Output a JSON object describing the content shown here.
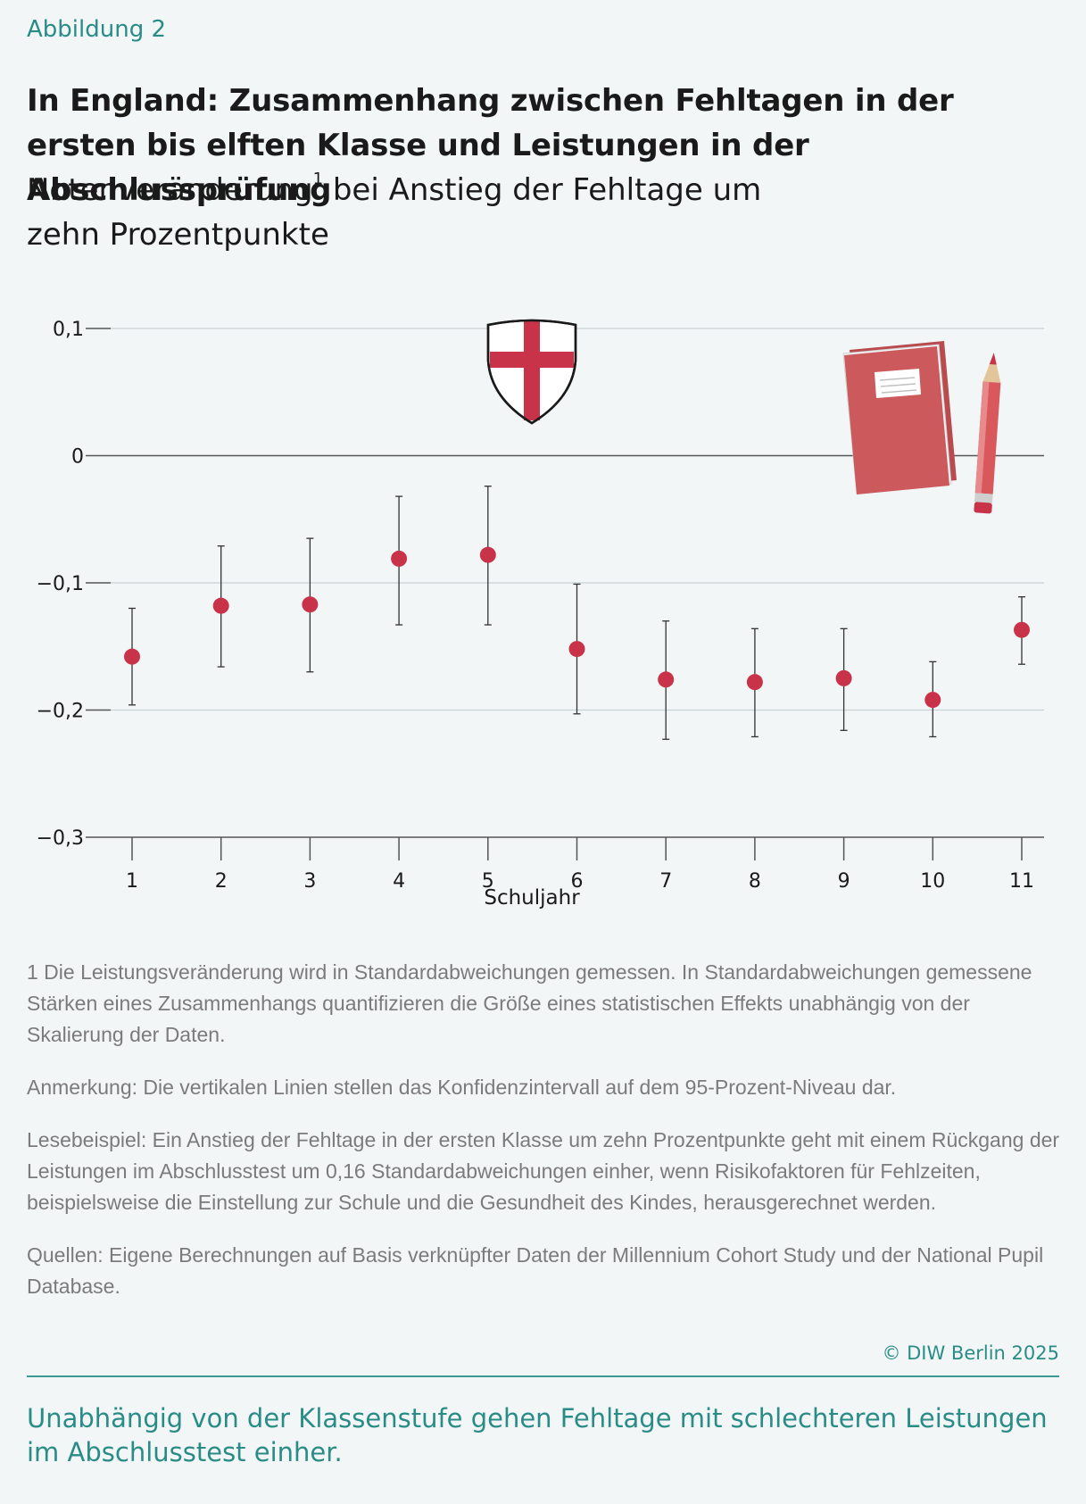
{
  "header": {
    "figure_label": "Abbildung 2",
    "title": "In England: Zusammenhang zwischen Fehltagen in der ersten bis elften Klasse und Leistungen in der Abschlussprüfung",
    "subtitle_pre": "Notenveränderung",
    "subtitle_sup": "1",
    "subtitle_post": " bei Anstieg der Fehltage um zehn Prozentpunkte"
  },
  "chart_data": {
    "type": "scatter",
    "x": [
      1,
      2,
      3,
      4,
      5,
      6,
      7,
      8,
      9,
      10,
      11
    ],
    "y": [
      -0.158,
      -0.118,
      -0.117,
      -0.081,
      -0.078,
      -0.152,
      -0.176,
      -0.178,
      -0.175,
      -0.192,
      -0.137
    ],
    "ci_low": [
      -0.196,
      -0.166,
      -0.17,
      -0.133,
      -0.133,
      -0.203,
      -0.223,
      -0.221,
      -0.216,
      -0.221,
      -0.164
    ],
    "ci_high": [
      -0.12,
      -0.071,
      -0.065,
      -0.032,
      -0.024,
      -0.101,
      -0.13,
      -0.136,
      -0.136,
      -0.162,
      -0.111
    ],
    "xlabel": "Schuljahr",
    "ylabel": "",
    "ylim": [
      -0.3,
      0.1
    ],
    "yticks": [
      0.1,
      0,
      -0.1,
      -0.2,
      -0.3
    ],
    "ytick_labels": [
      "0,1",
      "0",
      "−0,1",
      "−0,2",
      "−0,3"
    ],
    "xtick_labels": [
      "1",
      "2",
      "3",
      "4",
      "5",
      "6",
      "7",
      "8",
      "9",
      "10",
      "11"
    ],
    "grid": true,
    "point_color": "#c9334a",
    "icons": [
      "england-shield-icon",
      "notebook-icon",
      "pencil-icon"
    ]
  },
  "notes": {
    "footnote": "1  Die Leistungsveränderung wird in Standardabweichungen gemessen. In Standardabweichungen gemessene Stärken eines Zusammenhangs quantifizieren die Größe eines statistischen Effekts unabhängig von der Skalierung der Daten.",
    "remark": "Anmerkung: Die vertikalen Linien stellen das Konfidenzintervall auf dem 95-Prozent-Niveau dar.",
    "example": "Lesebeispiel: Ein Anstieg der Fehltage in der ersten Klasse um zehn Prozentpunkte geht mit einem Rückgang der Leistungen im Abschlusstest um 0,16 Standardabweichungen einher, wenn Risikofaktoren für Fehlzeiten, beispielsweise die Einstellung zur Schule und die Gesundheit des Kindes, herausgerechnet werden.",
    "sources": "Quellen: Eigene Berechnungen auf Basis verknüpfter Daten der Millennium Cohort Study und der National Pupil Database."
  },
  "footer": {
    "copyright": "© DIW Berlin 2025",
    "summary": "Unabhängig von der Klassenstufe gehen Fehltage mit schlechteren Leistungen im Abschlusstest einher."
  },
  "colors": {
    "accent": "#2a8c86",
    "point": "#c9334a",
    "notebook": "#cc5a5c"
  }
}
